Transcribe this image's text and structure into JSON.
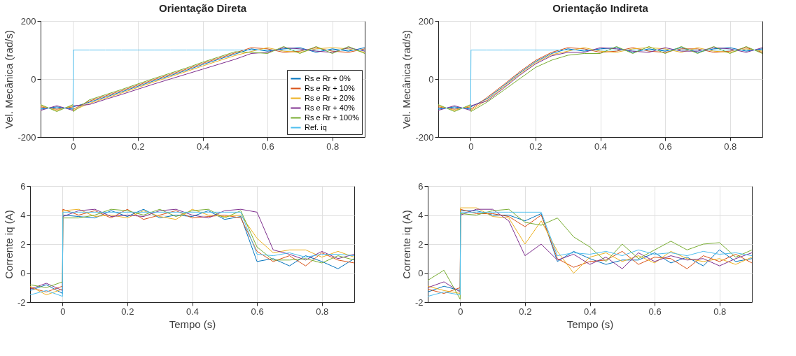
{
  "chart_data": [
    {
      "type": "line",
      "title": "Orientação Direta",
      "ylabel": "Vel. Mecânica (rad/s)",
      "xlim": [
        -0.1,
        0.9
      ],
      "xticks": [
        0,
        0.2,
        0.4,
        0.6,
        0.8
      ],
      "ylim": [
        -200,
        200
      ],
      "yticks": [
        -200,
        0,
        200
      ],
      "grid": true,
      "legend": "bottom right",
      "x": [
        -0.1,
        -0.05,
        0,
        0.001,
        0.05,
        0.1,
        0.15,
        0.2,
        0.25,
        0.3,
        0.35,
        0.4,
        0.45,
        0.5,
        0.55,
        0.6,
        0.65,
        0.7,
        0.75,
        0.8,
        0.85,
        0.9
      ],
      "series": [
        {
          "name": "Rs e Rr + 0%",
          "color": "#0072bd",
          "values": [
            -104,
            -96,
            -104,
            -96,
            -80,
            -62,
            -44,
            -25,
            -6,
            12,
            30,
            50,
            68,
            86,
            104,
            96,
            104,
            108,
            92,
            104,
            96,
            108
          ]
        },
        {
          "name": "Rs e Rr + 10%",
          "color": "#d95319",
          "values": [
            -96,
            -104,
            -96,
            -104,
            -76,
            -58,
            -40,
            -21,
            -2,
            16,
            34,
            54,
            72,
            90,
            108,
            104,
            92,
            96,
            108,
            96,
            92,
            104
          ]
        },
        {
          "name": "Rs e Rr + 20%",
          "color": "#edb120",
          "values": [
            -92,
            -108,
            -92,
            -108,
            -84,
            -66,
            -48,
            -29,
            -10,
            8,
            26,
            45,
            63,
            81,
            95,
            108,
            96,
            92,
            104,
            108,
            104,
            92
          ]
        },
        {
          "name": "Rs e Rr + 40%",
          "color": "#7e2f8e",
          "values": [
            -108,
            -92,
            -108,
            -92,
            -88,
            -70,
            -53,
            -35,
            -17,
            0,
            17,
            34,
            51,
            68,
            88,
            92,
            108,
            104,
            96,
            92,
            108,
            96
          ]
        },
        {
          "name": "Rs e Rr + 100%",
          "color": "#77ac30",
          "values": [
            -88,
            -112,
            -88,
            -112,
            -72,
            -54,
            -36,
            -17,
            2,
            20,
            38,
            58,
            76,
            94,
            92,
            88,
            112,
            88,
            112,
            88,
            112,
            88
          ]
        },
        {
          "name": "Ref. iq",
          "color": "#4dbeee",
          "values": [
            -100,
            -100,
            -100,
            100,
            100,
            100,
            100,
            100,
            100,
            100,
            100,
            100,
            100,
            100,
            100,
            100,
            100,
            100,
            100,
            100,
            100,
            100
          ]
        }
      ]
    },
    {
      "type": "line",
      "title": "Orientação Indireta",
      "ylabel": "Vel. Mecânica (rad/s)",
      "xlim": [
        -0.1,
        0.9
      ],
      "xticks": [
        0,
        0.2,
        0.4,
        0.6,
        0.8
      ],
      "ylim": [
        -200,
        200
      ],
      "yticks": [
        -200,
        0,
        200
      ],
      "grid": true,
      "x": [
        -0.1,
        -0.05,
        0,
        0.001,
        0.05,
        0.1,
        0.15,
        0.2,
        0.25,
        0.3,
        0.35,
        0.4,
        0.45,
        0.5,
        0.55,
        0.6,
        0.65,
        0.7,
        0.75,
        0.8,
        0.85,
        0.9
      ],
      "series": [
        {
          "color": "#0072bd",
          "values": [
            -104,
            -96,
            -104,
            -96,
            -68,
            -25,
            20,
            60,
            88,
            104,
            96,
            104,
            108,
            92,
            104,
            96,
            108,
            92,
            104,
            108,
            96,
            104
          ]
        },
        {
          "color": "#d95319",
          "values": [
            -96,
            -104,
            -96,
            -104,
            -64,
            -21,
            24,
            64,
            92,
            108,
            104,
            92,
            96,
            108,
            96,
            92,
            104,
            104,
            92,
            96,
            108,
            92
          ]
        },
        {
          "color": "#edb120",
          "values": [
            -92,
            -108,
            -92,
            -108,
            -72,
            -29,
            16,
            56,
            84,
            96,
            108,
            96,
            92,
            104,
            108,
            104,
            92,
            108,
            96,
            92,
            104,
            96
          ]
        },
        {
          "color": "#7e2f8e",
          "values": [
            -108,
            -92,
            -108,
            -92,
            -76,
            -33,
            12,
            52,
            80,
            92,
            92,
            108,
            104,
            96,
            92,
            108,
            96,
            96,
            108,
            104,
            92,
            108
          ]
        },
        {
          "color": "#77ac30",
          "values": [
            -88,
            -112,
            -88,
            -112,
            -80,
            -40,
            0,
            40,
            65,
            82,
            88,
            88,
            112,
            88,
            112,
            88,
            112,
            88,
            112,
            88,
            112,
            88
          ]
        },
        {
          "color": "#4dbeee",
          "values": [
            -100,
            -100,
            -100,
            100,
            100,
            100,
            100,
            100,
            100,
            100,
            100,
            100,
            100,
            100,
            100,
            100,
            100,
            100,
            100,
            100,
            100,
            100
          ]
        }
      ]
    },
    {
      "type": "line",
      "xlabel": "Tempo (s)",
      "ylabel": "Corrente iq (A)",
      "xlim": [
        -0.1,
        0.9
      ],
      "xticks": [
        0,
        0.2,
        0.4,
        0.6,
        0.8
      ],
      "ylim": [
        -2,
        6
      ],
      "yticks": [
        -2,
        0,
        2,
        4,
        6
      ],
      "grid": true,
      "x": [
        -0.1,
        -0.05,
        0,
        0.001,
        0.05,
        0.1,
        0.15,
        0.2,
        0.25,
        0.3,
        0.35,
        0.4,
        0.45,
        0.5,
        0.55,
        0.6,
        0.65,
        0.7,
        0.75,
        0.8,
        0.85,
        0.9
      ],
      "series": [
        {
          "color": "#0072bd",
          "values": [
            -1.2,
            -0.8,
            -1.4,
            4.0,
            3.9,
            3.8,
            4.3,
            3.9,
            4.4,
            3.8,
            4.0,
            3.9,
            4.3,
            3.7,
            3.9,
            0.8,
            1.0,
            0.5,
            1.2,
            0.8,
            0.3,
            1.0
          ]
        },
        {
          "color": "#d95319",
          "values": [
            -1.0,
            -1.3,
            -0.9,
            4.4,
            4.0,
            4.3,
            3.8,
            4.4,
            3.7,
            4.0,
            4.3,
            3.8,
            3.9,
            4.0,
            3.8,
            1.5,
            0.8,
            1.2,
            0.5,
            1.4,
            0.9,
            0.7
          ]
        },
        {
          "color": "#edb120",
          "values": [
            -0.9,
            -1.5,
            -1.1,
            4.3,
            4.4,
            3.9,
            4.0,
            3.8,
            4.3,
            3.9,
            3.7,
            4.4,
            4.0,
            3.9,
            4.0,
            2.4,
            1.4,
            1.6,
            1.6,
            1.1,
            1.5,
            1.1
          ]
        },
        {
          "color": "#7e2f8e",
          "values": [
            -1.1,
            -0.7,
            -1.2,
            3.9,
            4.3,
            4.4,
            3.9,
            4.0,
            3.9,
            4.3,
            4.4,
            4.0,
            3.8,
            4.3,
            4.4,
            4.2,
            1.6,
            1.3,
            0.9,
            1.5,
            1.0,
            1.3
          ]
        },
        {
          "color": "#77ac30",
          "values": [
            -0.8,
            -1.0,
            -0.6,
            3.8,
            3.8,
            4.0,
            4.4,
            4.3,
            4.0,
            4.4,
            3.9,
            4.3,
            4.4,
            3.8,
            4.3,
            1.8,
            0.9,
            0.9,
            1.0,
            0.7,
            1.2,
            0.9
          ]
        },
        {
          "color": "#4dbeee",
          "values": [
            -1.5,
            -1.2,
            -1.6,
            4.2,
            4.2,
            4.2,
            4.2,
            4.2,
            4.2,
            4.2,
            4.2,
            4.2,
            4.2,
            4.2,
            4.2,
            1.3,
            1.2,
            1.4,
            1.1,
            1.3,
            1.3,
            1.2
          ]
        }
      ]
    },
    {
      "type": "line",
      "xlabel": "Tempo (s)",
      "ylabel": "Corrente iq (A)",
      "xlim": [
        -0.1,
        0.9
      ],
      "xticks": [
        0,
        0.2,
        0.4,
        0.6,
        0.8
      ],
      "ylim": [
        -2,
        6
      ],
      "yticks": [
        -2,
        0,
        2,
        4,
        6
      ],
      "grid": true,
      "x": [
        -0.1,
        -0.05,
        0,
        0.001,
        0.05,
        0.1,
        0.15,
        0.2,
        0.25,
        0.3,
        0.35,
        0.4,
        0.45,
        0.5,
        0.55,
        0.6,
        0.65,
        0.7,
        0.75,
        0.8,
        0.85,
        0.9
      ],
      "series": [
        {
          "color": "#0072bd",
          "values": [
            -1.3,
            -0.9,
            -1.2,
            4.3,
            4.3,
            4.0,
            4.0,
            3.6,
            4.1,
            0.8,
            1.5,
            1.0,
            0.6,
            0.9,
            0.9,
            1.4,
            0.7,
            1.1,
            0.5,
            1.6,
            0.8,
            1.0
          ]
        },
        {
          "color": "#d95319",
          "values": [
            -1.1,
            -1.4,
            -1.0,
            4.4,
            4.1,
            4.1,
            3.9,
            3.2,
            4.0,
            1.0,
            0.4,
            0.8,
            0.9,
            1.5,
            0.6,
            1.1,
            1.0,
            0.3,
            1.2,
            0.8,
            1.3,
            0.7
          ]
        },
        {
          "color": "#edb120",
          "values": [
            -0.9,
            -1.2,
            -1.4,
            4.5,
            4.5,
            3.9,
            3.8,
            2.0,
            3.6,
            1.5,
            0.0,
            1.1,
            1.4,
            0.8,
            1.2,
            0.7,
            1.5,
            1.0,
            0.8,
            1.0,
            0.6,
            1.1
          ]
        },
        {
          "color": "#7e2f8e",
          "values": [
            -1.0,
            -0.6,
            -1.3,
            4.0,
            4.4,
            4.4,
            3.6,
            1.2,
            2.0,
            0.9,
            1.3,
            0.6,
            1.1,
            0.3,
            1.4,
            0.8,
            1.2,
            0.9,
            1.0,
            0.5,
            1.0,
            1.4
          ]
        },
        {
          "color": "#77ac30",
          "values": [
            -0.5,
            0.2,
            -1.8,
            4.1,
            4.0,
            4.3,
            4.4,
            3.5,
            3.3,
            3.8,
            2.5,
            1.8,
            0.8,
            2.0,
            1.0,
            1.6,
            2.2,
            1.6,
            2.0,
            2.1,
            1.1,
            1.6
          ]
        },
        {
          "color": "#4dbeee",
          "values": [
            -1.6,
            -1.3,
            -1.5,
            4.2,
            4.2,
            4.2,
            4.2,
            4.2,
            4.2,
            1.2,
            1.4,
            1.3,
            1.5,
            1.2,
            1.6,
            1.3,
            1.4,
            1.2,
            1.5,
            1.3,
            1.4,
            1.2
          ]
        }
      ]
    }
  ]
}
